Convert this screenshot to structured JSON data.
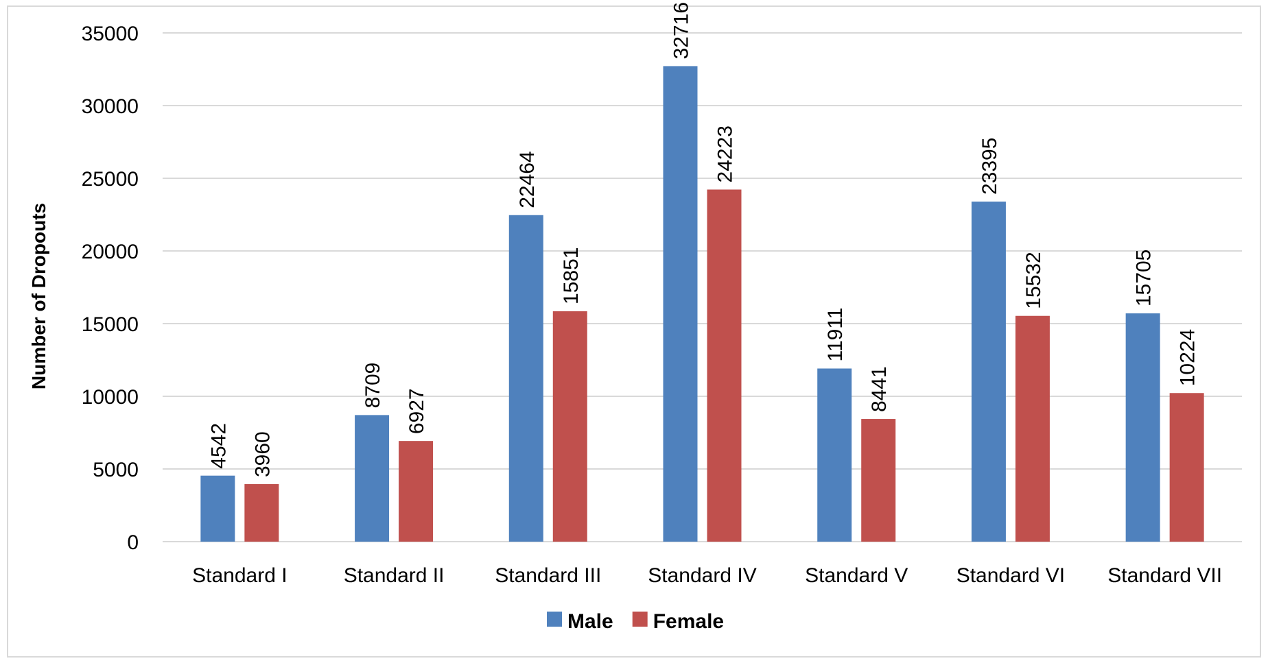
{
  "chart_data": {
    "type": "bar",
    "categories": [
      "Standard I",
      "Standard II",
      "Standard III",
      "Standard IV",
      "Standard V",
      "Standard VI",
      "Standard VII"
    ],
    "series": [
      {
        "name": "Male",
        "color": "#4f81bd",
        "values": [
          4542,
          8709,
          22464,
          32716,
          11911,
          23395,
          15705
        ]
      },
      {
        "name": "Female",
        "color": "#c0504d",
        "values": [
          3960,
          6927,
          15851,
          24223,
          8441,
          15532,
          10224
        ]
      }
    ],
    "ylabel": "Number of Dropouts",
    "xlabel": "",
    "title": "",
    "ylim": [
      0,
      35000
    ],
    "yticks": [
      0,
      5000,
      10000,
      15000,
      20000,
      25000,
      30000,
      35000
    ],
    "grid": true,
    "legend": "bottom-center",
    "data_labels": "rotated-vertical"
  }
}
